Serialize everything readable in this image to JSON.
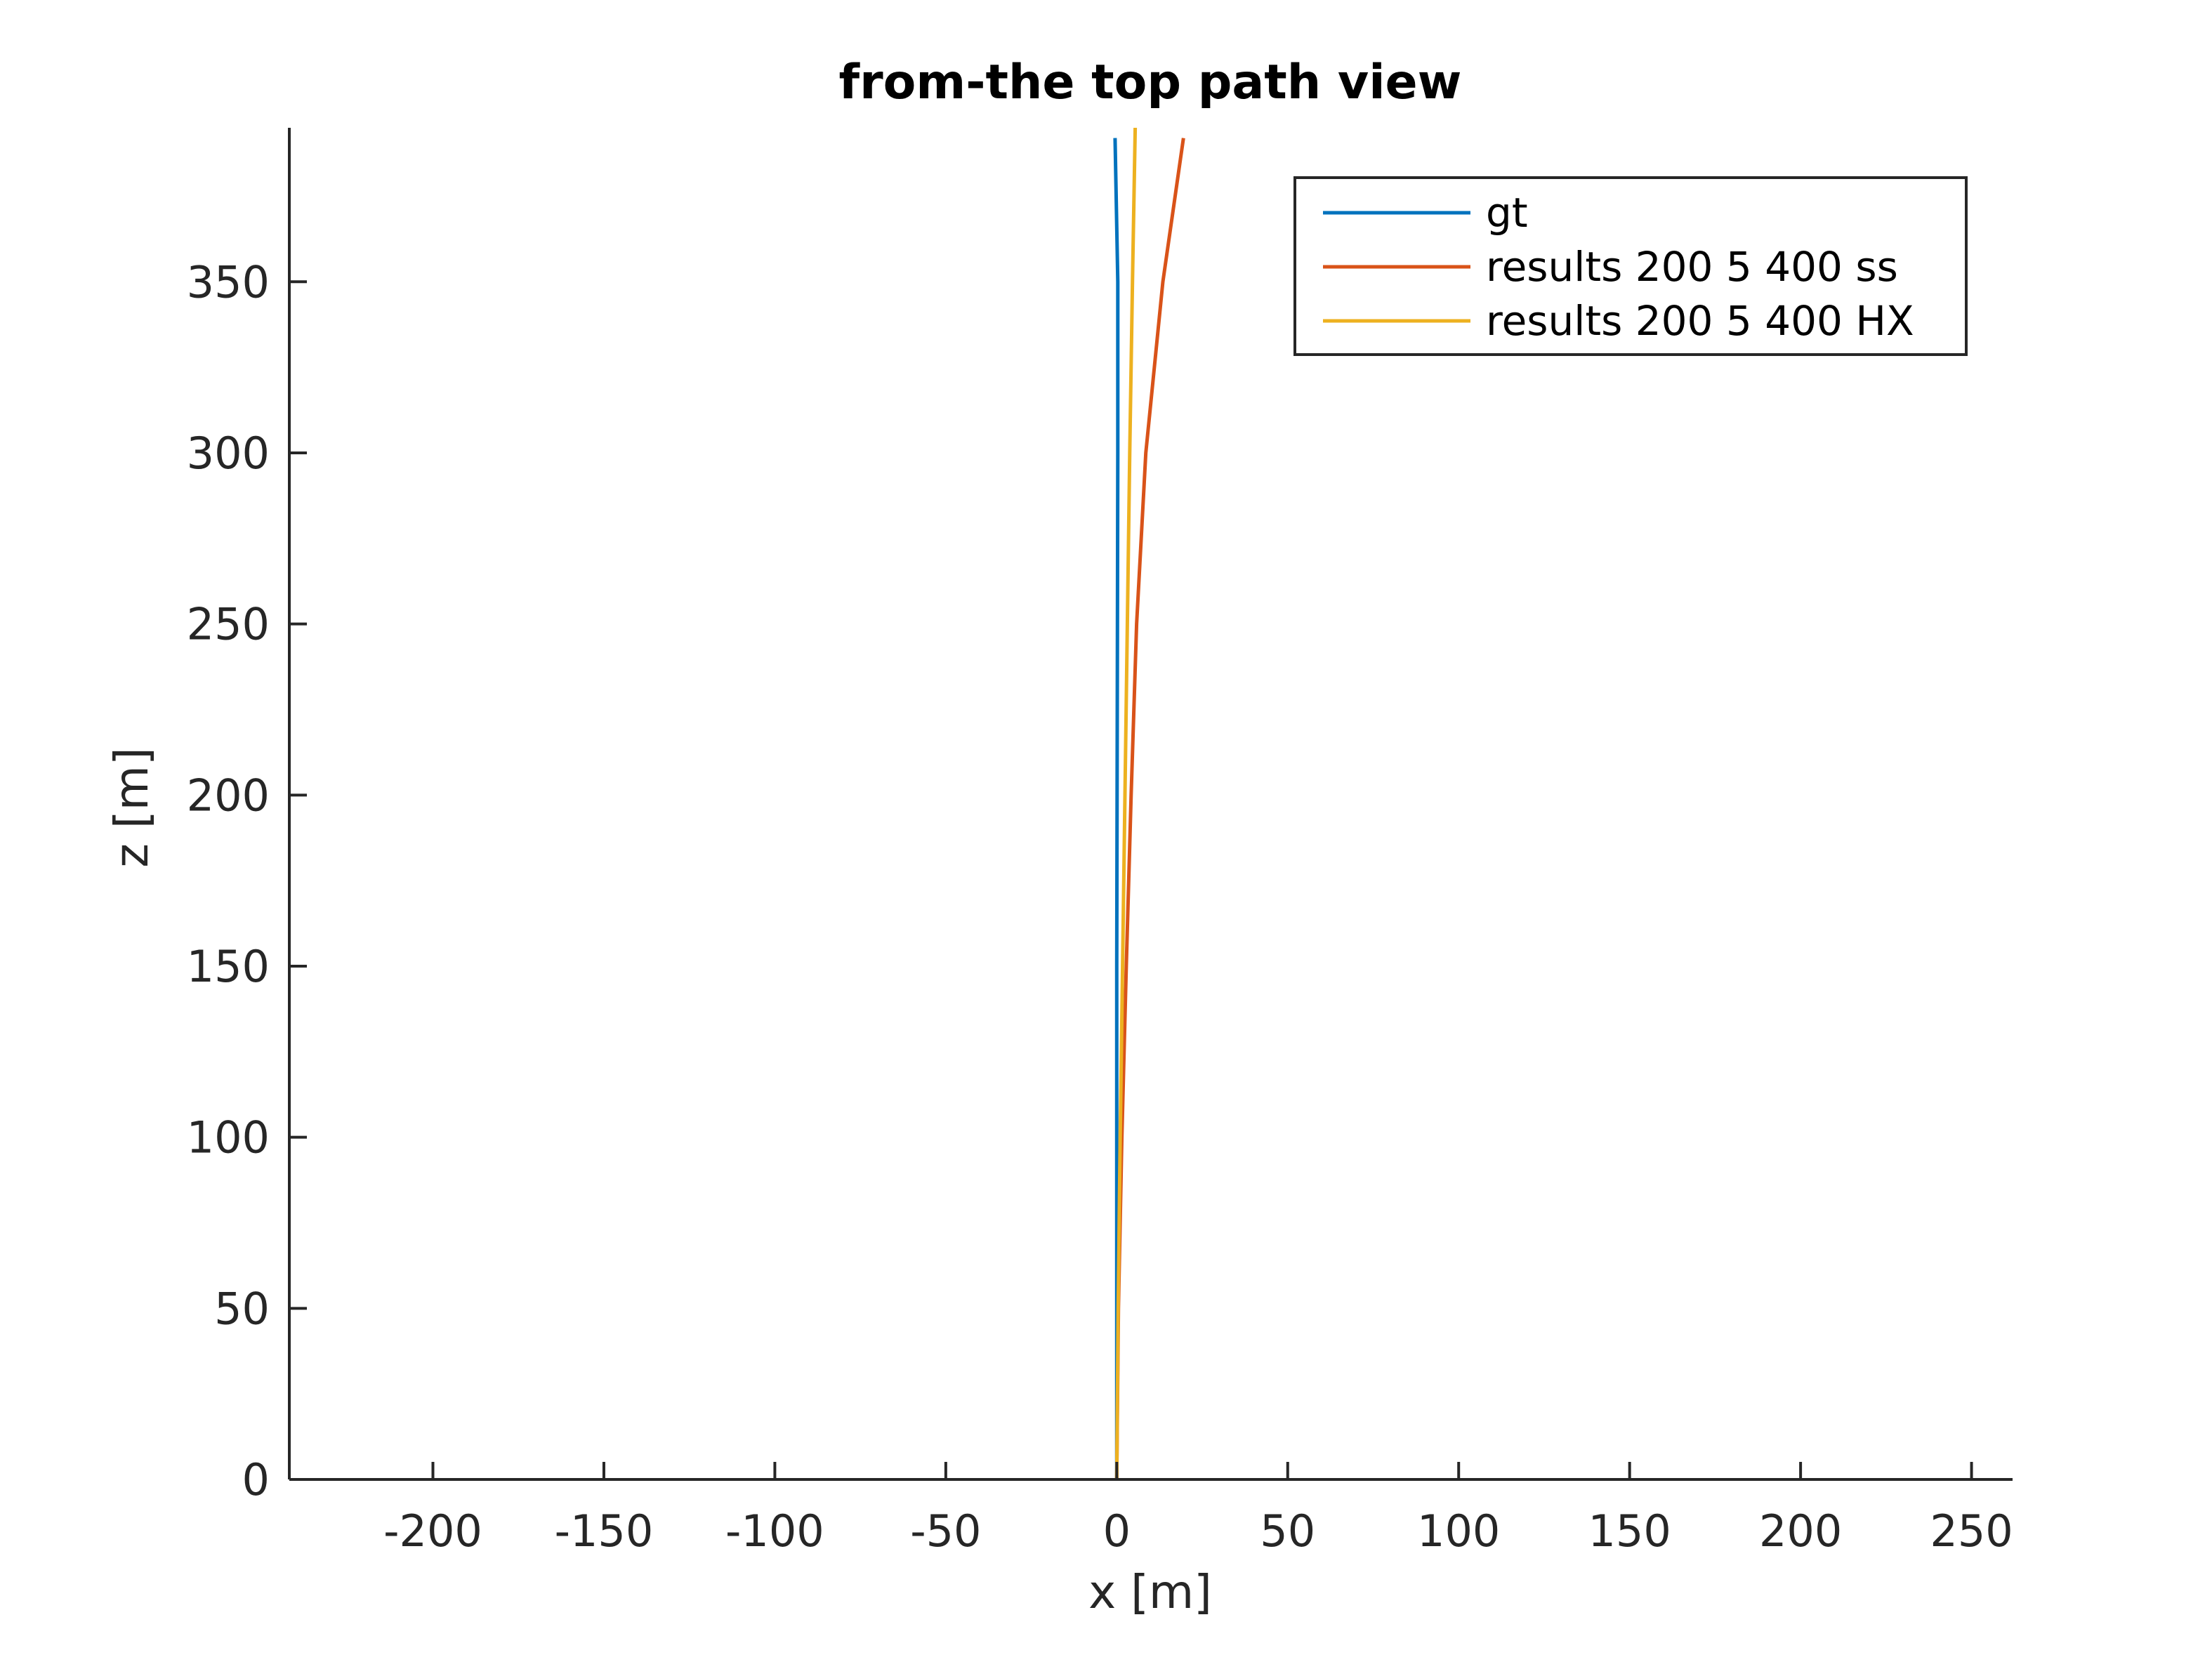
{
  "chart_data": {
    "type": "line",
    "title": "from-the top path view",
    "xlabel": "x [m]",
    "ylabel": "z [m]",
    "xlim": [
      -242,
      262
    ],
    "ylim": [
      0,
      395
    ],
    "xticks": [
      -200,
      -150,
      -100,
      -50,
      0,
      50,
      100,
      150,
      200,
      250
    ],
    "xtick_labels": [
      "-200",
      "-150",
      "-100",
      "-50",
      "0",
      "50",
      "100",
      "150",
      "200",
      "250"
    ],
    "yticks": [
      0,
      50,
      100,
      150,
      200,
      250,
      300,
      350
    ],
    "ytick_labels": [
      "0",
      "50",
      "100",
      "150",
      "200",
      "250",
      "300",
      "350"
    ],
    "grid": false,
    "legend_position": "top-right",
    "series": [
      {
        "name": "gt",
        "color": "#0072BD",
        "points": [
          [
            0,
            0
          ],
          [
            0,
            50
          ],
          [
            0,
            100
          ],
          [
            0,
            150
          ],
          [
            0.1,
            200
          ],
          [
            0.2,
            250
          ],
          [
            0.3,
            300
          ],
          [
            0.3,
            350
          ],
          [
            -0.5,
            392
          ]
        ]
      },
      {
        "name": "results 200 5 400 ss",
        "color": "#D95319",
        "points": [
          [
            0,
            0
          ],
          [
            0.5,
            50
          ],
          [
            1.5,
            100
          ],
          [
            2.8,
            150
          ],
          [
            4.2,
            200
          ],
          [
            5.8,
            250
          ],
          [
            8.5,
            300
          ],
          [
            13.5,
            350
          ],
          [
            19.5,
            392
          ]
        ]
      },
      {
        "name": "results 200 5 400 HX",
        "color": "#EDB120",
        "points": [
          [
            0,
            0
          ],
          [
            0.4,
            50
          ],
          [
            1.0,
            100
          ],
          [
            1.7,
            150
          ],
          [
            2.4,
            200
          ],
          [
            3.1,
            250
          ],
          [
            3.8,
            300
          ],
          [
            4.6,
            350
          ],
          [
            5.4,
            395
          ]
        ]
      }
    ]
  }
}
